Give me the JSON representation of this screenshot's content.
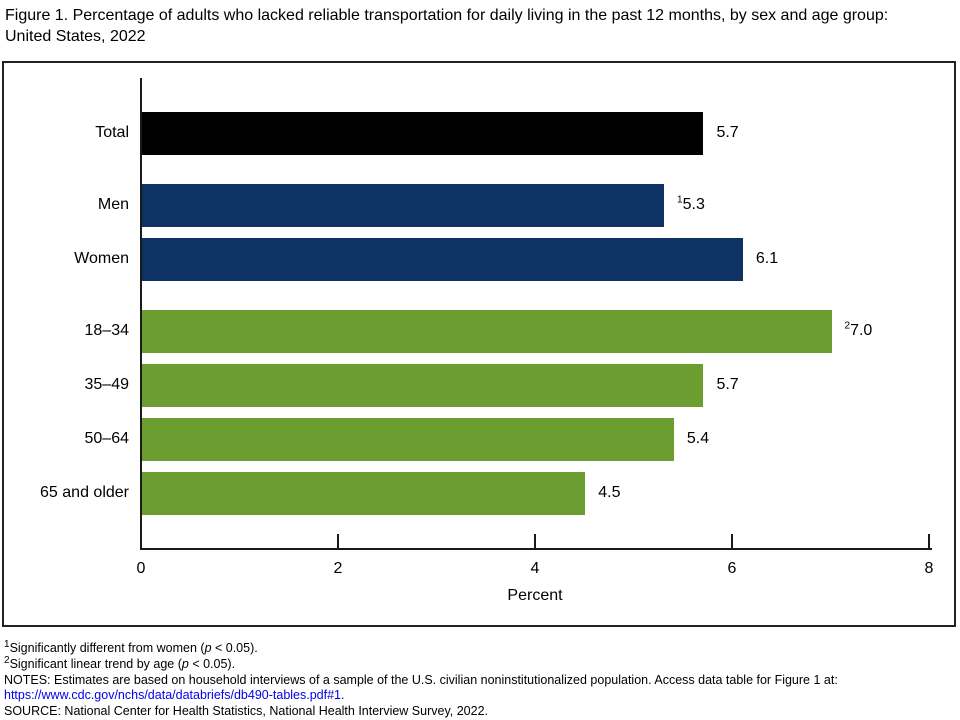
{
  "title": "Figure 1. Percentage of adults who lacked reliable transportation for daily living in the past 12 months, by sex and age group: United States, 2022",
  "colors": {
    "total": "#000000",
    "sex": "#0e3263",
    "age": "#6c9d31",
    "axis": "#1a1a1a",
    "link": "#0000EE"
  },
  "chart_data": {
    "type": "bar",
    "orientation": "horizontal",
    "xlabel": "Percent",
    "xlim": [
      0,
      8
    ],
    "x_ticks": [
      0,
      2,
      4,
      6,
      8
    ],
    "grid": false,
    "legend": false,
    "categories": [
      "Total",
      "Men",
      "Women",
      "18–34",
      "35–49",
      "50–64",
      "65 and older"
    ],
    "values": [
      5.7,
      5.3,
      6.1,
      7.0,
      5.7,
      5.4,
      4.5
    ],
    "bars": [
      {
        "label": "Total",
        "value": 5.7,
        "display": "5.7",
        "sup": "",
        "group": "total"
      },
      {
        "label": "Men",
        "value": 5.3,
        "display": "5.3",
        "sup": "1",
        "group": "sex"
      },
      {
        "label": "Women",
        "value": 6.1,
        "display": "6.1",
        "sup": "",
        "group": "sex"
      },
      {
        "label": "18–34",
        "value": 7.0,
        "display": "7.0",
        "sup": "2",
        "group": "age"
      },
      {
        "label": "35–49",
        "value": 5.7,
        "display": "5.7",
        "sup": "",
        "group": "age"
      },
      {
        "label": "50–64",
        "value": 5.4,
        "display": "5.4",
        "sup": "",
        "group": "age"
      },
      {
        "label": "65 and older",
        "value": 4.5,
        "display": "4.5",
        "sup": "",
        "group": "age"
      }
    ]
  },
  "footnotes": [
    {
      "sup": "1",
      "pre": "Significantly different from women (",
      "italic": "p",
      "post": " < 0.05)."
    },
    {
      "sup": "2",
      "pre": "Significant linear trend by age (",
      "italic": "p",
      "post": " < 0.05)."
    }
  ],
  "notes": {
    "text": "NOTES: Estimates are based on household interviews of a sample of the U.S. civilian noninstitutionalized population. Access data table for Figure 1 at:",
    "link": "https://www.cdc.gov/nchs/data/databriefs/db490-tables.pdf#1."
  },
  "source": "SOURCE: National Center for Health Statistics, National Health Interview Survey, 2022."
}
